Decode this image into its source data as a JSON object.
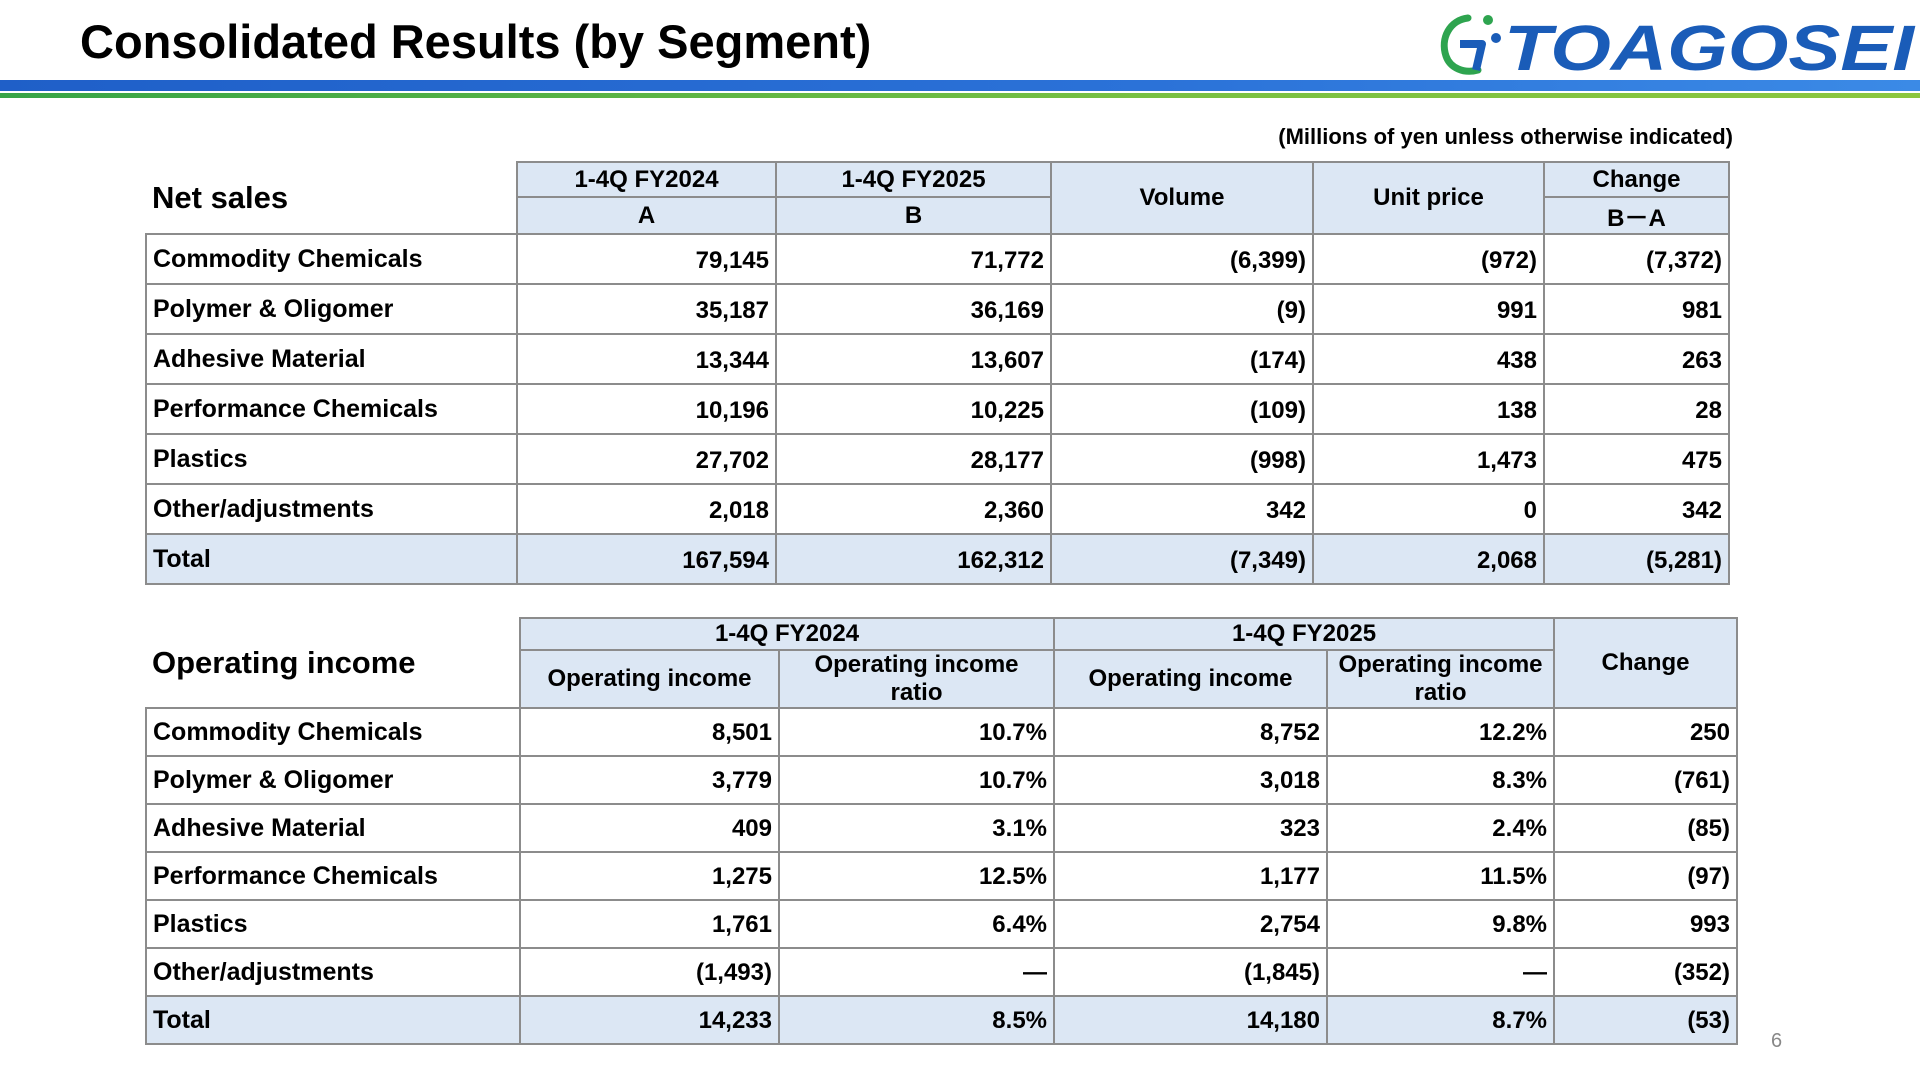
{
  "header": {
    "title": "Consolidated Results (by Segment)",
    "logo_text": "TOAGOSEI",
    "logo_mark": "G",
    "colors": {
      "brand_blue": "#1a5cb8",
      "brand_green": "#2ea44f",
      "table_header_bg": "#dce7f4"
    }
  },
  "unit_note": "(Millions of yen unless otherwise indicated)",
  "net_sales": {
    "title": "Net sales",
    "headers": {
      "fy2024": "1-4Q FY2024",
      "fy2024_sub": "A",
      "fy2025": "1-4Q FY2025",
      "fy2025_sub": "B",
      "volume": "Volume",
      "unit_price": "Unit price",
      "change": "Change",
      "change_sub": "B－A"
    },
    "rows": [
      {
        "segment": "Commodity Chemicals",
        "a": "79,145",
        "b": "71,772",
        "volume": "(6,399)",
        "unit_price": "(972)",
        "change": "(7,372)"
      },
      {
        "segment": "Polymer & Oligomer",
        "a": "35,187",
        "b": "36,169",
        "volume": "(9)",
        "unit_price": "991",
        "change": "981"
      },
      {
        "segment": "Adhesive Material",
        "a": "13,344",
        "b": "13,607",
        "volume": "(174)",
        "unit_price": "438",
        "change": "263"
      },
      {
        "segment": "Performance Chemicals",
        "a": "10,196",
        "b": "10,225",
        "volume": "(109)",
        "unit_price": "138",
        "change": "28"
      },
      {
        "segment": "Plastics",
        "a": "27,702",
        "b": "28,177",
        "volume": "(998)",
        "unit_price": "1,473",
        "change": "475"
      },
      {
        "segment": "Other/adjustments",
        "a": "2,018",
        "b": "2,360",
        "volume": "342",
        "unit_price": "0",
        "change": "342"
      }
    ],
    "total": {
      "segment": "Total",
      "a": "167,594",
      "b": "162,312",
      "volume": "(7,349)",
      "unit_price": "2,068",
      "change": "(5,281)"
    }
  },
  "operating_income": {
    "title": "Operating income",
    "headers": {
      "fy2024": "1-4Q FY2024",
      "fy2025": "1-4Q FY2025",
      "oi": "Operating income",
      "oi_ratio": "Operating income ratio",
      "oi_2025": "Operating income",
      "oi_ratio_2025_line1": "Operating income",
      "oi_ratio_2025_line2": "ratio",
      "change": "Change"
    },
    "rows": [
      {
        "segment": "Commodity Chemicals",
        "oi_2024": "8,501",
        "ratio_2024": "10.7%",
        "oi_2025": "8,752",
        "ratio_2025": "12.2%",
        "change": "250"
      },
      {
        "segment": "Polymer & Oligomer",
        "oi_2024": "3,779",
        "ratio_2024": "10.7%",
        "oi_2025": "3,018",
        "ratio_2025": "8.3%",
        "change": "(761)"
      },
      {
        "segment": "Adhesive Material",
        "oi_2024": "409",
        "ratio_2024": "3.1%",
        "oi_2025": "323",
        "ratio_2025": "2.4%",
        "change": "(85)"
      },
      {
        "segment": "Performance Chemicals",
        "oi_2024": "1,275",
        "ratio_2024": "12.5%",
        "oi_2025": "1,177",
        "ratio_2025": "11.5%",
        "change": "(97)"
      },
      {
        "segment": "Plastics",
        "oi_2024": "1,761",
        "ratio_2024": "6.4%",
        "oi_2025": "2,754",
        "ratio_2025": "9.8%",
        "change": "993"
      },
      {
        "segment": "Other/adjustments",
        "oi_2024": "(1,493)",
        "ratio_2024": "—",
        "oi_2025": "(1,845)",
        "ratio_2025": "—",
        "change": "(352)"
      }
    ],
    "total": {
      "segment": "Total",
      "oi_2024": "14,233",
      "ratio_2024": "8.5%",
      "oi_2025": "14,180",
      "ratio_2025": "8.7%",
      "change": "(53)"
    }
  },
  "page_number": "6"
}
